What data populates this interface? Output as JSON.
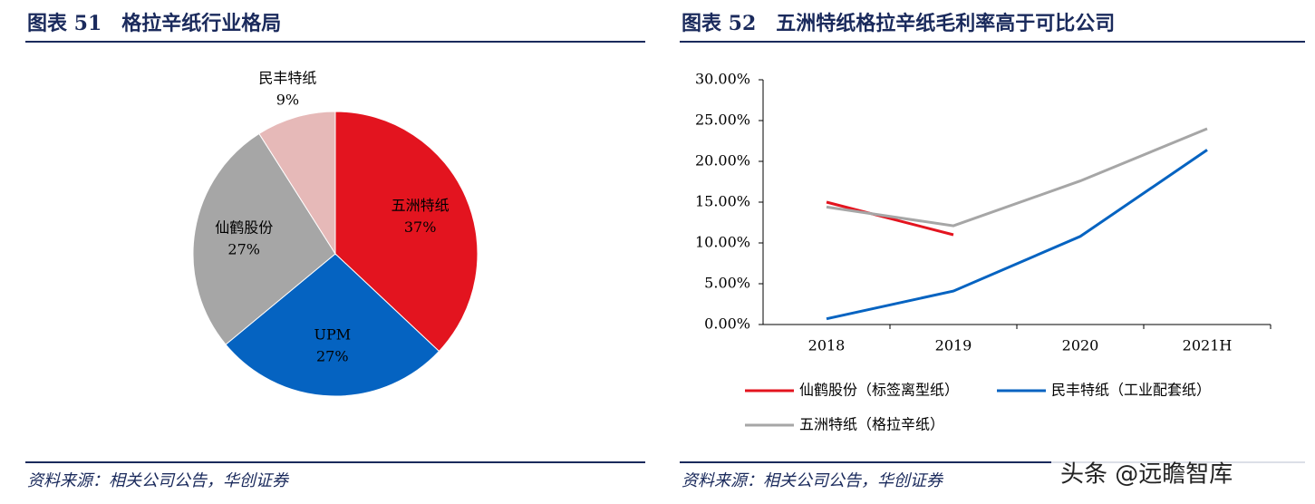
{
  "chart_data": [
    {
      "type": "pie",
      "title": "图表 51　格拉辛纸行业格局",
      "categories": [
        "五洲特纸",
        "UPM",
        "仙鹤股份",
        "民丰特纸"
      ],
      "values": [
        37,
        27,
        27,
        9
      ],
      "value_labels": [
        "37%",
        "27%",
        "27%",
        "9%"
      ],
      "colors": [
        "#e3141f",
        "#0563c1",
        "#a6a6a6",
        "#e6b9b8"
      ],
      "source": "资料来源：相关公司公告，华创证券"
    },
    {
      "type": "line",
      "title": "图表 52　五洲特纸格拉辛纸毛利率高于可比公司",
      "categories": [
        "2018",
        "2019",
        "2020",
        "2021H"
      ],
      "series": [
        {
          "name": "仙鹤股份（标签离型纸）",
          "color": "#e3141f",
          "values": [
            15.0,
            11.0,
            null,
            null
          ]
        },
        {
          "name": "民丰特纸（工业配套纸）",
          "color": "#0563c1",
          "values": [
            0.7,
            4.1,
            10.8,
            21.4
          ]
        },
        {
          "name": "五洲特纸（格拉辛纸）",
          "color": "#a6a6a6",
          "values": [
            14.4,
            12.1,
            17.6,
            24.0
          ]
        }
      ],
      "ylim": [
        0,
        30
      ],
      "yticks": [
        {
          "value": 0,
          "label": "0.00%"
        },
        {
          "value": 5,
          "label": "5.00%"
        },
        {
          "value": 10,
          "label": "10.00%"
        },
        {
          "value": 15,
          "label": "15.00%"
        },
        {
          "value": 20,
          "label": "20.00%"
        },
        {
          "value": 25,
          "label": "25.00%"
        },
        {
          "value": 30,
          "label": "30.00%"
        }
      ],
      "source": "资料来源：相关公司公告，华创证券"
    }
  ],
  "watermark": "头条 @远瞻智库"
}
